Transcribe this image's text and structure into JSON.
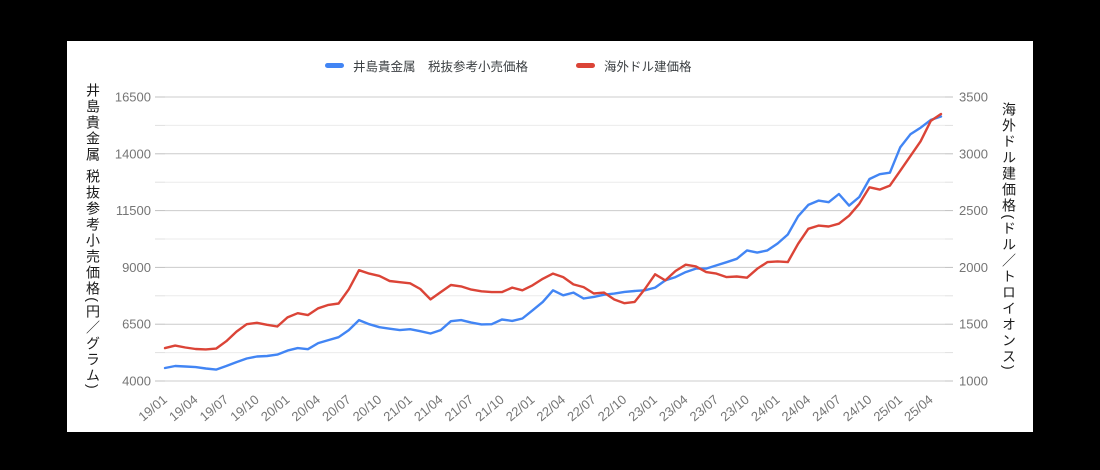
{
  "legend": {
    "items": [
      {
        "label": "井島貴金属　税抜参考小売価格",
        "color": "#4285f4"
      },
      {
        "label": "海外ドル建価格",
        "color": "#db4437"
      }
    ]
  },
  "colors": {
    "background": "#000000",
    "canvas": "#ffffff",
    "series_blue": "#4285f4",
    "series_red": "#db4437",
    "gridline_major": "#cccccc",
    "gridline_minor": "#ebebeb",
    "tick_label": "#757575",
    "axis_title": "#1a1a1a",
    "legend_text": "#3c4043"
  },
  "chart_data": {
    "type": "line",
    "title": "",
    "grid": true,
    "legend_position": "top",
    "x_tick_labels": [
      "19/01",
      "19/04",
      "19/07",
      "19/10",
      "20/01",
      "20/04",
      "20/07",
      "20/10",
      "21/01",
      "21/04",
      "21/07",
      "21/10",
      "22/01",
      "22/04",
      "22/07",
      "22/10",
      "23/01",
      "23/04",
      "23/07",
      "23/10",
      "24/01",
      "24/04",
      "24/07",
      "24/10",
      "25/01",
      "25/04"
    ],
    "months": [
      "19/01",
      "19/02",
      "19/03",
      "19/04",
      "19/05",
      "19/06",
      "19/07",
      "19/08",
      "19/09",
      "19/10",
      "19/11",
      "19/12",
      "20/01",
      "20/02",
      "20/03",
      "20/04",
      "20/05",
      "20/06",
      "20/07",
      "20/08",
      "20/09",
      "20/10",
      "20/11",
      "20/12",
      "21/01",
      "21/02",
      "21/03",
      "21/04",
      "21/05",
      "21/06",
      "21/07",
      "21/08",
      "21/09",
      "21/10",
      "21/11",
      "21/12",
      "22/01",
      "22/02",
      "22/03",
      "22/04",
      "22/05",
      "22/06",
      "22/07",
      "22/08",
      "22/09",
      "22/10",
      "22/11",
      "22/12",
      "23/01",
      "23/02",
      "23/03",
      "23/04",
      "23/05",
      "23/06",
      "23/07",
      "23/08",
      "23/09",
      "23/10",
      "23/11",
      "23/12",
      "24/01",
      "24/02",
      "24/03",
      "24/04",
      "24/05",
      "24/06",
      "24/07",
      "24/08",
      "24/09",
      "24/10",
      "24/11",
      "24/12",
      "25/01",
      "25/02",
      "25/03",
      "25/04",
      "25/05"
    ],
    "y_left": {
      "title": "井島貴金属 税抜参考小売価格(円／グラム)",
      "ticks": [
        4000,
        6500,
        9000,
        11500,
        14000,
        16500
      ],
      "min": 4000,
      "max": 16500,
      "minor_step": 1250
    },
    "y_right": {
      "title": "海外ドル建価格(ドル／トロイオンス)",
      "ticks": [
        1000,
        1500,
        2000,
        2500,
        3000,
        3500
      ],
      "min": 1000,
      "max": 3500,
      "minor_step": 250
    },
    "series": [
      {
        "name": "井島貴金属　税抜参考小売価格",
        "axis": "left",
        "unit": "円/グラム",
        "color": "#4285f4",
        "values": [
          4570,
          4660,
          4640,
          4610,
          4550,
          4500,
          4660,
          4830,
          4990,
          5080,
          5100,
          5160,
          5340,
          5450,
          5400,
          5670,
          5800,
          5930,
          6240,
          6680,
          6500,
          6370,
          6300,
          6240,
          6280,
          6190,
          6090,
          6240,
          6630,
          6680,
          6570,
          6490,
          6500,
          6705,
          6645,
          6750,
          7110,
          7480,
          7990,
          7770,
          7890,
          7630,
          7700,
          7800,
          7845,
          7920,
          7960,
          7990,
          8110,
          8430,
          8575,
          8795,
          8945,
          8945,
          9090,
          9230,
          9380,
          9750,
          9650,
          9750,
          10050,
          10450,
          11250,
          11750,
          11940,
          11870,
          12230,
          11720,
          12100,
          12890,
          13100,
          13170,
          14280,
          14860,
          15150,
          15490,
          15640
        ]
      },
      {
        "name": "海外ドル建価格",
        "axis": "right",
        "unit": "ドル/トロイオンス",
        "color": "#db4437",
        "values": [
          1290,
          1312,
          1295,
          1282,
          1278,
          1285,
          1350,
          1435,
          1500,
          1512,
          1495,
          1480,
          1560,
          1597,
          1580,
          1640,
          1670,
          1682,
          1807,
          1975,
          1945,
          1925,
          1880,
          1870,
          1860,
          1810,
          1718,
          1783,
          1845,
          1833,
          1805,
          1790,
          1783,
          1783,
          1822,
          1798,
          1842,
          1900,
          1945,
          1915,
          1850,
          1827,
          1770,
          1778,
          1717,
          1685,
          1696,
          1810,
          1939,
          1886,
          1968,
          2024,
          2009,
          1959,
          1945,
          1915,
          1920,
          1909,
          1988,
          2047,
          2053,
          2047,
          2208,
          2340,
          2368,
          2360,
          2385,
          2455,
          2560,
          2705,
          2685,
          2720,
          2850,
          2980,
          3110,
          3290,
          3350
        ]
      }
    ]
  }
}
